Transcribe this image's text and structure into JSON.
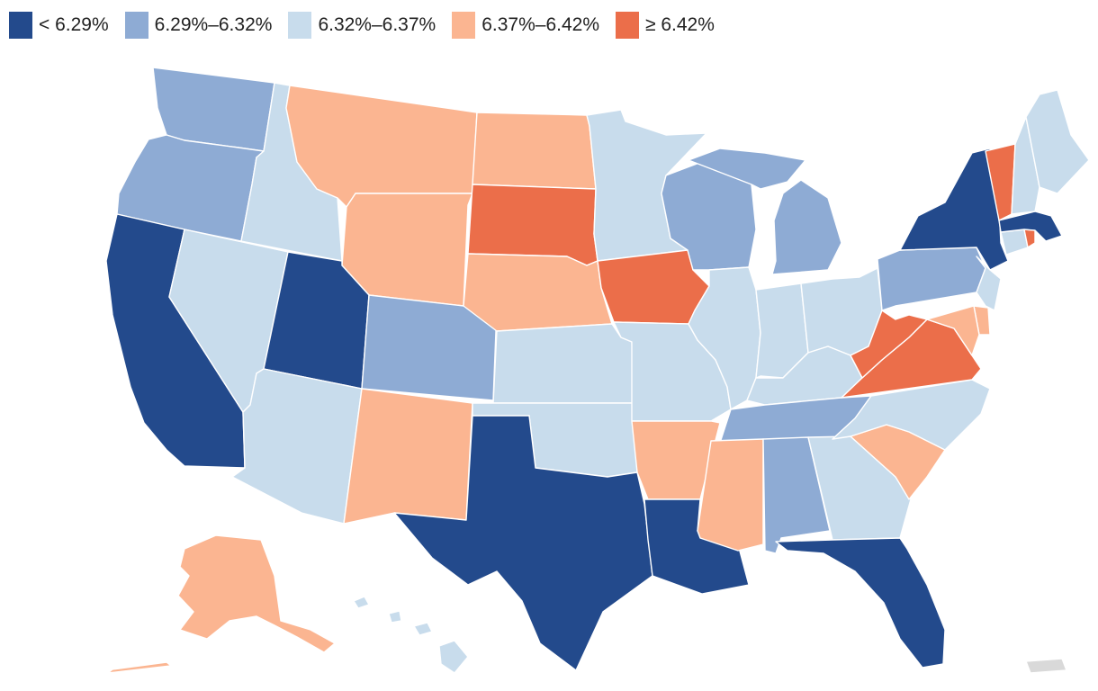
{
  "legend": {
    "items": [
      {
        "label": "< 6.29%",
        "color": "#234a8c"
      },
      {
        "label": "6.29%–6.32%",
        "color": "#8eabd4"
      },
      {
        "label": "6.32%–6.37%",
        "color": "#c8dcec"
      },
      {
        "label": "6.37%–6.42%",
        "color": "#fbb591"
      },
      {
        "label": "≥ 6.42%",
        "color": "#eb6e4a"
      }
    ]
  },
  "no_data_color": "#d9d9d9",
  "states": [
    {
      "id": "WA",
      "bin": 1
    },
    {
      "id": "OR",
      "bin": 1
    },
    {
      "id": "CA",
      "bin": 0
    },
    {
      "id": "NV",
      "bin": 2
    },
    {
      "id": "ID",
      "bin": 2
    },
    {
      "id": "MT",
      "bin": 3
    },
    {
      "id": "WY",
      "bin": 3
    },
    {
      "id": "UT",
      "bin": 0
    },
    {
      "id": "AZ",
      "bin": 2
    },
    {
      "id": "CO",
      "bin": 1
    },
    {
      "id": "NM",
      "bin": 3
    },
    {
      "id": "ND",
      "bin": 3
    },
    {
      "id": "SD",
      "bin": 4
    },
    {
      "id": "NE",
      "bin": 3
    },
    {
      "id": "KS",
      "bin": 2
    },
    {
      "id": "OK",
      "bin": 2
    },
    {
      "id": "TX",
      "bin": 0
    },
    {
      "id": "MN",
      "bin": 2
    },
    {
      "id": "IA",
      "bin": 4
    },
    {
      "id": "MO",
      "bin": 2
    },
    {
      "id": "AR",
      "bin": 3
    },
    {
      "id": "LA",
      "bin": 0
    },
    {
      "id": "WI",
      "bin": 1
    },
    {
      "id": "IL",
      "bin": 2
    },
    {
      "id": "MI",
      "bin": 1
    },
    {
      "id": "IN",
      "bin": 2
    },
    {
      "id": "OH",
      "bin": 2
    },
    {
      "id": "KY",
      "bin": 2
    },
    {
      "id": "TN",
      "bin": 1
    },
    {
      "id": "MS",
      "bin": 3
    },
    {
      "id": "AL",
      "bin": 1
    },
    {
      "id": "GA",
      "bin": 2
    },
    {
      "id": "FL",
      "bin": 0
    },
    {
      "id": "SC",
      "bin": 3
    },
    {
      "id": "NC",
      "bin": 2
    },
    {
      "id": "VA",
      "bin": 4
    },
    {
      "id": "WV",
      "bin": 4
    },
    {
      "id": "PA",
      "bin": 1
    },
    {
      "id": "NY",
      "bin": 0
    },
    {
      "id": "NJ",
      "bin": 2
    },
    {
      "id": "DE",
      "bin": 3
    },
    {
      "id": "MD",
      "bin": 3
    },
    {
      "id": "CT",
      "bin": 2
    },
    {
      "id": "RI",
      "bin": 4
    },
    {
      "id": "MA",
      "bin": 0
    },
    {
      "id": "VT",
      "bin": 4
    },
    {
      "id": "NH",
      "bin": 2
    },
    {
      "id": "ME",
      "bin": 2
    },
    {
      "id": "AK",
      "bin": 3
    },
    {
      "id": "HI",
      "bin": 2
    },
    {
      "id": "PR",
      "bin": -1
    }
  ]
}
